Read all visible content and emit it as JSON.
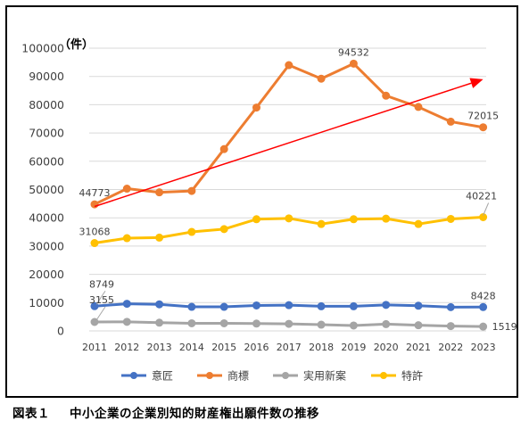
{
  "caption": {
    "figure_label": "図表１",
    "title": "中小企業の企業別知的財産権出願件数の推移"
  },
  "chart_data": {
    "type": "line",
    "unit_label": "（件）",
    "x": [
      "2011",
      "2012",
      "2013",
      "2014",
      "2015",
      "2016",
      "2017",
      "2018",
      "2019",
      "2020",
      "2021",
      "2022",
      "2023"
    ],
    "ylim": [
      0,
      100000
    ],
    "yticks": [
      "0",
      "10000",
      "20000",
      "30000",
      "40000",
      "50000",
      "60000",
      "70000",
      "80000",
      "90000",
      "100000"
    ],
    "grid": true,
    "legend_position": "bottom",
    "series": [
      {
        "name": "意匠",
        "color": "#4472C4",
        "values": [
          8749,
          9600,
          9400,
          8500,
          8500,
          9000,
          9100,
          8700,
          8700,
          9200,
          8900,
          8400,
          8428
        ]
      },
      {
        "name": "商標",
        "color": "#ED7D31",
        "values": [
          44773,
          50300,
          49000,
          49500,
          64300,
          79000,
          94000,
          89200,
          94532,
          83200,
          79200,
          74000,
          72015
        ]
      },
      {
        "name": "実用新案",
        "color": "#A5A5A5",
        "values": [
          3155,
          3200,
          2900,
          2700,
          2700,
          2600,
          2500,
          2200,
          1900,
          2400,
          2000,
          1700,
          1519
        ]
      },
      {
        "name": "特許",
        "color": "#FFC000",
        "values": [
          31068,
          32800,
          33000,
          35000,
          36000,
          39500,
          39800,
          37800,
          39500,
          39700,
          37800,
          39600,
          40221
        ]
      }
    ],
    "data_labels": [
      {
        "series": 1,
        "index": 0,
        "text": "44773",
        "pos": "above"
      },
      {
        "series": 1,
        "index": 8,
        "text": "94532",
        "pos": "above"
      },
      {
        "series": 1,
        "index": 12,
        "text": "72015",
        "pos": "above"
      },
      {
        "series": 3,
        "index": 0,
        "text": "31068",
        "pos": "above"
      },
      {
        "series": 3,
        "index": 12,
        "text": "40221",
        "pos": "leader"
      },
      {
        "series": 0,
        "index": 0,
        "text": "8749",
        "pos": "leader"
      },
      {
        "series": 0,
        "index": 12,
        "text": "8428",
        "pos": "above"
      },
      {
        "series": 2,
        "index": 0,
        "text": "3155",
        "pos": "leader"
      },
      {
        "series": 2,
        "index": 12,
        "text": "1519",
        "pos": "right"
      }
    ],
    "trend_arrow": {
      "color": "#FF0000",
      "from": {
        "x": "2011",
        "y": 44000
      },
      "to": {
        "x": "2023",
        "y": 89000
      }
    }
  }
}
